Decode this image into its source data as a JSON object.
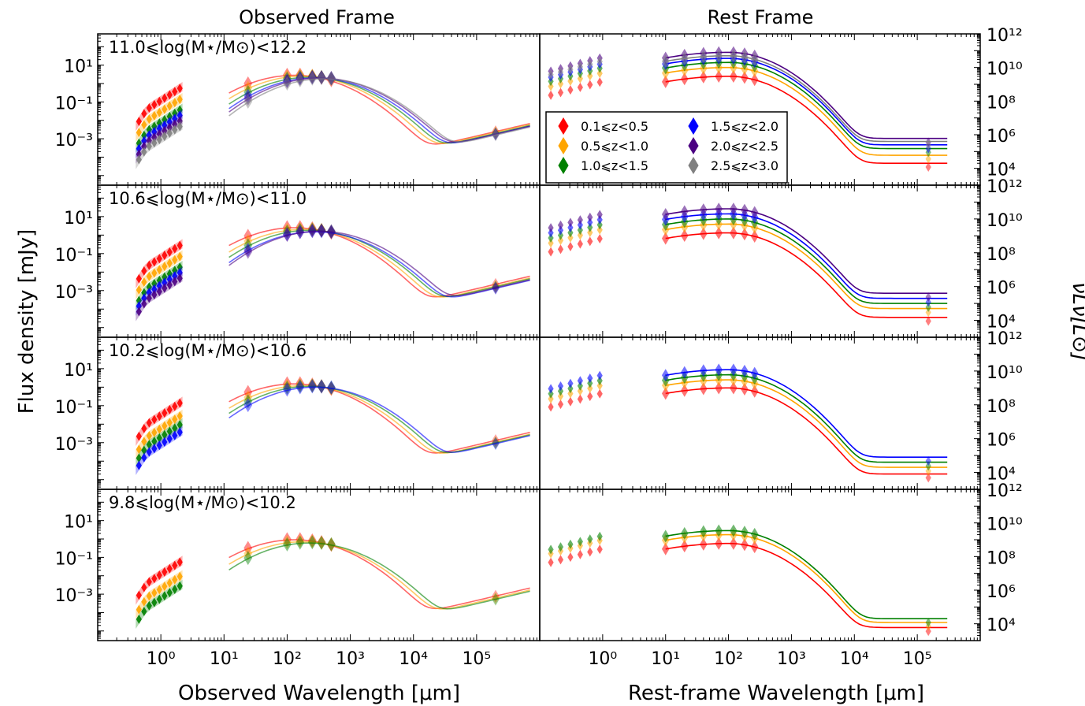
{
  "figure": {
    "col_titles": [
      "Observed Frame",
      "Rest Frame"
    ],
    "y_label_left": "Flux density [mJy]",
    "y_label_right": "νLν[L⊙]",
    "x_label_left": "Observed Wavelength [μm]",
    "x_label_right": "Rest-frame Wavelength [μm]"
  },
  "legend": [
    {
      "label": "0.1⩽z<0.5",
      "color": "#ff0000"
    },
    {
      "label": "0.5⩽z<1.0",
      "color": "#ffa500"
    },
    {
      "label": "1.0⩽z<1.5",
      "color": "#008000"
    },
    {
      "label": "1.5⩽z<2.0",
      "color": "#0000ff"
    },
    {
      "label": "2.0⩽z<2.5",
      "color": "#4b0082"
    },
    {
      "label": "2.5⩽z<3.0",
      "color": "#808080"
    }
  ],
  "chart_data": {
    "type": "scatter",
    "x_scale": "log",
    "y_scale": "log",
    "left_xlim": [
      0.1,
      1000000
    ],
    "left_ylim": [
      3e-06,
      500
    ],
    "right_xlim": [
      0.1,
      1000000
    ],
    "right_ylim": [
      1000,
      1000000000000
    ],
    "left_xticks": [
      "10⁰",
      "10¹",
      "10²",
      "10³",
      "10⁴",
      "10⁵"
    ],
    "right_xticks": [
      "10⁰",
      "10¹",
      "10²",
      "10³",
      "10⁴",
      "10⁵"
    ],
    "left_yticks": [
      "10¹",
      "10⁻¹",
      "10⁻³"
    ],
    "right_yticks": [
      "10¹²",
      "10¹⁰",
      "10⁸",
      "10⁶",
      "10⁴"
    ],
    "rows": [
      {
        "label": "11.0⩽log(M⋆/M⊙)<12.2",
        "observed": [
          {
            "z": "0.1-0.5",
            "peak_flux": 2.8,
            "flux_1um": 0.12
          },
          {
            "z": "0.5-1.0",
            "peak_flux": 2.5,
            "flux_1um": 0.03
          },
          {
            "z": "1.0-1.5",
            "peak_flux": 2.2,
            "flux_1um": 0.008
          },
          {
            "z": "1.5-2.0",
            "peak_flux": 2.0,
            "flux_1um": 0.004
          },
          {
            "z": "2.0-2.5",
            "peak_flux": 2.0,
            "flux_1um": 0.002
          },
          {
            "z": "2.5-3.0",
            "peak_flux": 1.8,
            "flux_1um": 0.001
          }
        ],
        "rest": [
          {
            "z": "0.1-0.5",
            "peak_L": 3000000000,
            "cold_L": 20000
          },
          {
            "z": "0.5-1.0",
            "peak_L": 10000000000,
            "cold_L": 60000
          },
          {
            "z": "1.0-1.5",
            "peak_L": 20000000000,
            "cold_L": 150000
          },
          {
            "z": "1.5-2.0",
            "peak_L": 35000000000,
            "cold_L": 250000
          },
          {
            "z": "2.0-2.5",
            "peak_L": 80000000000,
            "cold_L": 600000
          },
          {
            "z": "2.5-3.0",
            "peak_L": 50000000000,
            "cold_L": 400000
          }
        ]
      },
      {
        "label": "10.6⩽log(M⋆/M⊙)<11.0",
        "observed": [
          {
            "z": "0.1-0.5",
            "peak_flux": 2.5,
            "flux_1um": 0.06
          },
          {
            "z": "0.5-1.0",
            "peak_flux": 2.0,
            "flux_1um": 0.015
          },
          {
            "z": "1.0-1.5",
            "peak_flux": 1.8,
            "flux_1um": 0.004
          },
          {
            "z": "1.5-2.0",
            "peak_flux": 1.5,
            "flux_1um": 0.002
          },
          {
            "z": "2.0-2.5",
            "peak_flux": 1.6,
            "flux_1um": 0.001
          }
        ],
        "rest": [
          {
            "z": "0.1-0.5",
            "peak_L": 1500000000,
            "cold_L": 15000
          },
          {
            "z": "0.5-1.0",
            "peak_L": 5000000000,
            "cold_L": 50000
          },
          {
            "z": "1.0-1.5",
            "peak_L": 10000000000,
            "cold_L": 100000
          },
          {
            "z": "1.5-2.0",
            "peak_L": 20000000000,
            "cold_L": 200000
          },
          {
            "z": "2.0-2.5",
            "peak_L": 40000000000,
            "cold_L": 400000
          }
        ]
      },
      {
        "label": "10.2⩽log(M⋆/M⊙)<10.6",
        "observed": [
          {
            "z": "0.1-0.5",
            "peak_flux": 1.5,
            "flux_1um": 0.03
          },
          {
            "z": "0.5-1.0",
            "peak_flux": 1.2,
            "flux_1um": 0.006
          },
          {
            "z": "1.0-1.5",
            "peak_flux": 1.1,
            "flux_1um": 0.002
          },
          {
            "z": "1.5-2.0",
            "peak_flux": 1.0,
            "flux_1um": 0.0008
          }
        ],
        "rest": [
          {
            "z": "0.1-0.5",
            "peak_L": 1000000000,
            "cold_L": 8000
          },
          {
            "z": "0.5-1.0",
            "peak_L": 3000000000,
            "cold_L": 20000
          },
          {
            "z": "1.0-1.5",
            "peak_L": 6000000000,
            "cold_L": 40000
          },
          {
            "z": "1.5-2.0",
            "peak_L": 12000000000,
            "cold_L": 80000
          }
        ]
      },
      {
        "label": "9.8⩽log(M⋆/M⊙)<10.2",
        "observed": [
          {
            "z": "0.1-0.5",
            "peak_flux": 0.9,
            "flux_1um": 0.012
          },
          {
            "z": "0.5-1.0",
            "peak_flux": 0.7,
            "flux_1um": 0.002
          },
          {
            "z": "1.0-1.5",
            "peak_flux": 0.6,
            "flux_1um": 0.0006
          }
        ],
        "rest": [
          {
            "z": "0.1-0.5",
            "peak_L": 600000000,
            "cold_L": 6000
          },
          {
            "z": "0.5-1.0",
            "peak_L": 2000000000,
            "cold_L": 12000
          },
          {
            "z": "1.0-1.5",
            "peak_L": 3500000000,
            "cold_L": 20000
          }
        ]
      }
    ]
  }
}
